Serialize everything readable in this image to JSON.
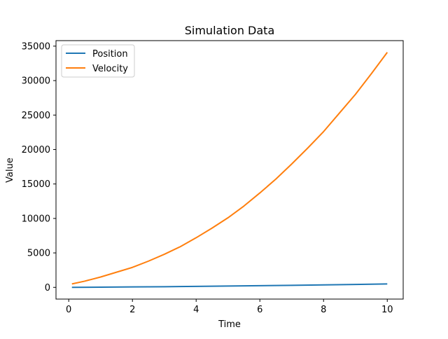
{
  "chart_data": {
    "type": "line",
    "title": "Simulation Data",
    "xlabel": "Time",
    "ylabel": "Value",
    "xlim": [
      -0.4,
      10.5
    ],
    "ylim": [
      -1700,
      35800
    ],
    "xticks": [
      0,
      2,
      4,
      6,
      8,
      10
    ],
    "yticks": [
      0,
      5000,
      10000,
      15000,
      20000,
      25000,
      30000,
      35000
    ],
    "grid": false,
    "legend": {
      "placement": "top-left"
    },
    "series": [
      {
        "name": "Position",
        "color": "#1f77b4",
        "x": [
          0.1,
          1,
          2,
          3,
          4,
          5,
          6,
          7,
          8,
          9,
          10
        ],
        "y": [
          0,
          27,
          60,
          97,
          140,
          187,
          240,
          297,
          360,
          427,
          500
        ]
      },
      {
        "name": "Velocity",
        "color": "#ff7f0e",
        "x": [
          0.1,
          0.5,
          1,
          1.5,
          2,
          2.5,
          3,
          3.5,
          4,
          4.5,
          5,
          5.5,
          6,
          6.5,
          7,
          7.5,
          8,
          8.5,
          9,
          9.5,
          10
        ],
        "y": [
          500,
          900,
          1500,
          2200,
          2900,
          3800,
          4800,
          5900,
          7200,
          8600,
          10100,
          11800,
          13700,
          15700,
          17900,
          20200,
          22600,
          25300,
          28000,
          31000,
          34100
        ]
      }
    ]
  }
}
